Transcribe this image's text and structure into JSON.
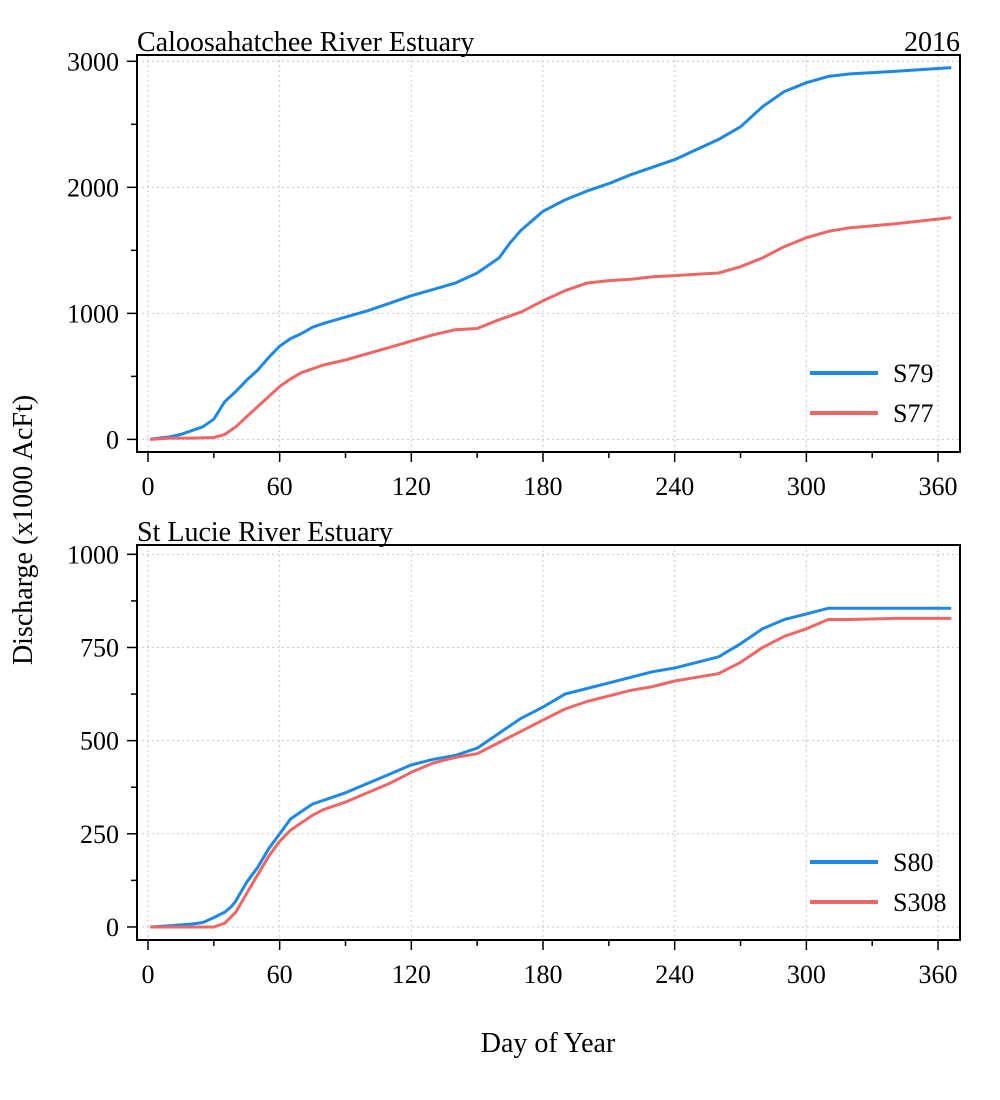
{
  "figure": {
    "ylabel": "Discharge (x1000 AcFt)",
    "xlabel": "Day of Year",
    "year_label": "2016"
  },
  "chart_data": [
    {
      "type": "line",
      "title": "Caloosahatchee River Estuary",
      "xlabel": "Day of Year",
      "ylabel": "Discharge (x1000 AcFt)",
      "xlim": [
        -5,
        370
      ],
      "ylim": [
        -100,
        3050
      ],
      "x_ticks": [
        0,
        60,
        120,
        180,
        240,
        300,
        360
      ],
      "y_ticks": [
        0,
        1000,
        2000,
        3000
      ],
      "y_minor_ticks": [
        500,
        1500,
        2500
      ],
      "grid": true,
      "legend_position": "bottom-right",
      "series": [
        {
          "name": "S79",
          "color": "#1E88E5",
          "points": [
            [
              1,
              0
            ],
            [
              5,
              10
            ],
            [
              10,
              20
            ],
            [
              15,
              40
            ],
            [
              20,
              70
            ],
            [
              25,
              100
            ],
            [
              30,
              160
            ],
            [
              35,
              300
            ],
            [
              40,
              380
            ],
            [
              45,
              470
            ],
            [
              50,
              550
            ],
            [
              55,
              650
            ],
            [
              60,
              740
            ],
            [
              65,
              800
            ],
            [
              70,
              840
            ],
            [
              75,
              890
            ],
            [
              80,
              920
            ],
            [
              90,
              970
            ],
            [
              100,
              1020
            ],
            [
              110,
              1080
            ],
            [
              120,
              1140
            ],
            [
              130,
              1190
            ],
            [
              140,
              1240
            ],
            [
              150,
              1320
            ],
            [
              160,
              1440
            ],
            [
              165,
              1560
            ],
            [
              170,
              1660
            ],
            [
              180,
              1810
            ],
            [
              190,
              1900
            ],
            [
              200,
              1970
            ],
            [
              210,
              2030
            ],
            [
              220,
              2100
            ],
            [
              230,
              2160
            ],
            [
              240,
              2220
            ],
            [
              250,
              2300
            ],
            [
              260,
              2380
            ],
            [
              270,
              2480
            ],
            [
              280,
              2640
            ],
            [
              290,
              2760
            ],
            [
              300,
              2830
            ],
            [
              310,
              2880
            ],
            [
              320,
              2900
            ],
            [
              340,
              2920
            ],
            [
              366,
              2950
            ]
          ]
        },
        {
          "name": "S77",
          "color": "#EE6666",
          "points": [
            [
              1,
              0
            ],
            [
              10,
              10
            ],
            [
              20,
              10
            ],
            [
              30,
              15
            ],
            [
              35,
              40
            ],
            [
              40,
              100
            ],
            [
              45,
              180
            ],
            [
              50,
              260
            ],
            [
              55,
              340
            ],
            [
              60,
              420
            ],
            [
              65,
              480
            ],
            [
              70,
              530
            ],
            [
              80,
              590
            ],
            [
              90,
              630
            ],
            [
              100,
              680
            ],
            [
              110,
              730
            ],
            [
              120,
              780
            ],
            [
              130,
              830
            ],
            [
              140,
              870
            ],
            [
              150,
              880
            ],
            [
              160,
              950
            ],
            [
              170,
              1010
            ],
            [
              180,
              1100
            ],
            [
              190,
              1180
            ],
            [
              200,
              1240
            ],
            [
              210,
              1260
            ],
            [
              220,
              1270
            ],
            [
              230,
              1290
            ],
            [
              240,
              1300
            ],
            [
              250,
              1310
            ],
            [
              260,
              1320
            ],
            [
              270,
              1370
            ],
            [
              280,
              1440
            ],
            [
              290,
              1530
            ],
            [
              300,
              1600
            ],
            [
              310,
              1650
            ],
            [
              320,
              1680
            ],
            [
              340,
              1710
            ],
            [
              366,
              1760
            ]
          ]
        }
      ]
    },
    {
      "type": "line",
      "title": "St Lucie River Estuary",
      "xlabel": "Day of Year",
      "ylabel": "Discharge (x1000 AcFt)",
      "xlim": [
        -5,
        370
      ],
      "ylim": [
        -35,
        1025
      ],
      "x_ticks": [
        0,
        60,
        120,
        180,
        240,
        300,
        360
      ],
      "y_ticks": [
        0,
        250,
        500,
        750,
        1000
      ],
      "y_minor_ticks": [
        125,
        375,
        625,
        875
      ],
      "grid": true,
      "legend_position": "bottom-right",
      "series": [
        {
          "name": "S80",
          "color": "#1E88E5",
          "points": [
            [
              1,
              0
            ],
            [
              10,
              3
            ],
            [
              20,
              8
            ],
            [
              25,
              12
            ],
            [
              30,
              25
            ],
            [
              35,
              40
            ],
            [
              38,
              55
            ],
            [
              40,
              70
            ],
            [
              45,
              120
            ],
            [
              50,
              160
            ],
            [
              55,
              210
            ],
            [
              60,
              250
            ],
            [
              65,
              290
            ],
            [
              70,
              310
            ],
            [
              75,
              330
            ],
            [
              80,
              340
            ],
            [
              90,
              360
            ],
            [
              100,
              385
            ],
            [
              110,
              410
            ],
            [
              120,
              435
            ],
            [
              130,
              450
            ],
            [
              140,
              460
            ],
            [
              150,
              480
            ],
            [
              160,
              520
            ],
            [
              170,
              560
            ],
            [
              180,
              590
            ],
            [
              190,
              625
            ],
            [
              200,
              640
            ],
            [
              210,
              655
            ],
            [
              220,
              670
            ],
            [
              230,
              685
            ],
            [
              240,
              695
            ],
            [
              250,
              710
            ],
            [
              260,
              725
            ],
            [
              270,
              760
            ],
            [
              280,
              800
            ],
            [
              290,
              825
            ],
            [
              300,
              840
            ],
            [
              310,
              855
            ],
            [
              320,
              855
            ],
            [
              340,
              855
            ],
            [
              366,
              855
            ]
          ]
        },
        {
          "name": "S308",
          "color": "#EE6666",
          "points": [
            [
              1,
              0
            ],
            [
              10,
              0
            ],
            [
              20,
              0
            ],
            [
              30,
              0
            ],
            [
              35,
              10
            ],
            [
              40,
              40
            ],
            [
              45,
              90
            ],
            [
              50,
              140
            ],
            [
              55,
              190
            ],
            [
              60,
              230
            ],
            [
              65,
              260
            ],
            [
              70,
              280
            ],
            [
              75,
              300
            ],
            [
              80,
              315
            ],
            [
              90,
              335
            ],
            [
              100,
              360
            ],
            [
              110,
              385
            ],
            [
              120,
              415
            ],
            [
              130,
              440
            ],
            [
              140,
              455
            ],
            [
              150,
              465
            ],
            [
              160,
              495
            ],
            [
              170,
              525
            ],
            [
              180,
              555
            ],
            [
              190,
              585
            ],
            [
              200,
              605
            ],
            [
              210,
              620
            ],
            [
              220,
              635
            ],
            [
              230,
              645
            ],
            [
              240,
              660
            ],
            [
              250,
              670
            ],
            [
              260,
              680
            ],
            [
              270,
              710
            ],
            [
              280,
              750
            ],
            [
              290,
              780
            ],
            [
              300,
              800
            ],
            [
              310,
              825
            ],
            [
              320,
              825
            ],
            [
              340,
              828
            ],
            [
              366,
              828
            ]
          ]
        }
      ]
    }
  ]
}
